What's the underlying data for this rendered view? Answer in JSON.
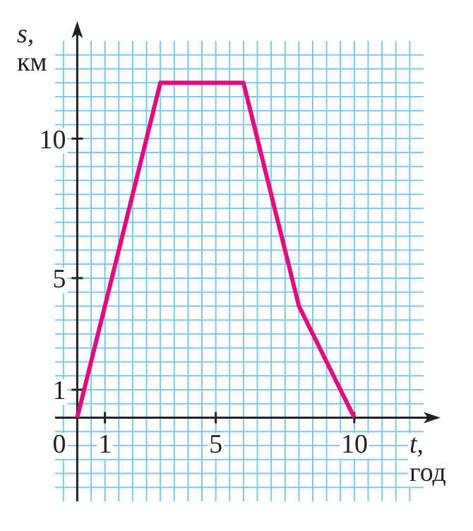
{
  "chart_data": {
    "type": "line",
    "xlabel": "t, год",
    "ylabel": "s, км",
    "x": [
      0,
      3,
      6,
      8,
      10
    ],
    "series": [
      {
        "color": "#e5087e",
        "values": [
          0,
          12,
          12,
          4,
          0
        ]
      }
    ],
    "xlim": [
      -0.8,
      12.5
    ],
    "ylim": [
      -3,
      13.5
    ],
    "xticks": [
      {
        "value": -0.5,
        "label": null
      },
      {
        "value": 0,
        "label": null
      },
      {
        "value": 0.5,
        "label": null
      },
      1,
      {
        "value": 1.5,
        "label": null
      },
      {
        "value": 2,
        "label": null
      },
      {
        "value": 2.5,
        "label": null
      },
      {
        "value": 3,
        "label": null
      },
      {
        "value": 3.5,
        "label": null
      },
      {
        "value": 4,
        "label": null
      },
      {
        "value": 4.5,
        "label": null
      },
      5,
      {
        "value": 5.5,
        "label": null
      },
      {
        "value": 6,
        "label": null
      },
      {
        "value": 6.5,
        "label": null
      },
      {
        "value": 7,
        "label": null
      },
      {
        "value": 7.5,
        "label": null
      },
      {
        "value": 8,
        "label": null
      },
      {
        "value": 8.5,
        "label": null
      },
      {
        "value": 9,
        "label": null
      },
      {
        "value": 9.5,
        "label": null
      },
      10,
      {
        "value": 10.5,
        "label": null
      },
      {
        "value": 11,
        "label": null
      },
      {
        "value": 11.5,
        "label": null
      },
      {
        "value": 12,
        "label": null
      }
    ],
    "yticks": [
      {
        "value": -2.5,
        "label": null
      },
      {
        "value": -2,
        "label": null
      },
      {
        "value": -1.5,
        "label": null
      },
      {
        "value": -1,
        "label": null
      },
      {
        "value": -0.5,
        "label": null
      },
      {
        "value": 0,
        "label": null
      },
      {
        "value": 0.5,
        "label": null
      },
      1,
      {
        "value": 1.5,
        "label": null
      },
      {
        "value": 2,
        "label": null
      },
      {
        "value": 2.5,
        "label": null
      },
      {
        "value": 3,
        "label": null
      },
      {
        "value": 3.5,
        "label": null
      },
      {
        "value": 4,
        "label": null
      },
      {
        "value": 4.5,
        "label": null
      },
      5,
      {
        "value": 5.5,
        "label": null
      },
      {
        "value": 6,
        "label": null
      },
      {
        "value": 6.5,
        "label": null
      },
      {
        "value": 7,
        "label": null
      },
      {
        "value": 7.5,
        "label": null
      },
      {
        "value": 8,
        "label": null
      },
      {
        "value": 8.5,
        "label": null
      },
      {
        "value": 9,
        "label": null
      },
      {
        "value": 9.5,
        "label": null
      },
      10,
      {
        "value": 10.5,
        "label": null
      },
      {
        "value": 11,
        "label": null
      },
      {
        "value": 11.5,
        "label": null
      },
      {
        "value": 12,
        "label": null
      },
      {
        "value": 12.5,
        "label": null
      },
      {
        "value": 13,
        "label": null
      }
    ],
    "annotations": [
      {
        "text": "0",
        "x": 0,
        "y": 0
      }
    ],
    "grid": true,
    "marker": "none",
    "line_style": "solid"
  }
}
